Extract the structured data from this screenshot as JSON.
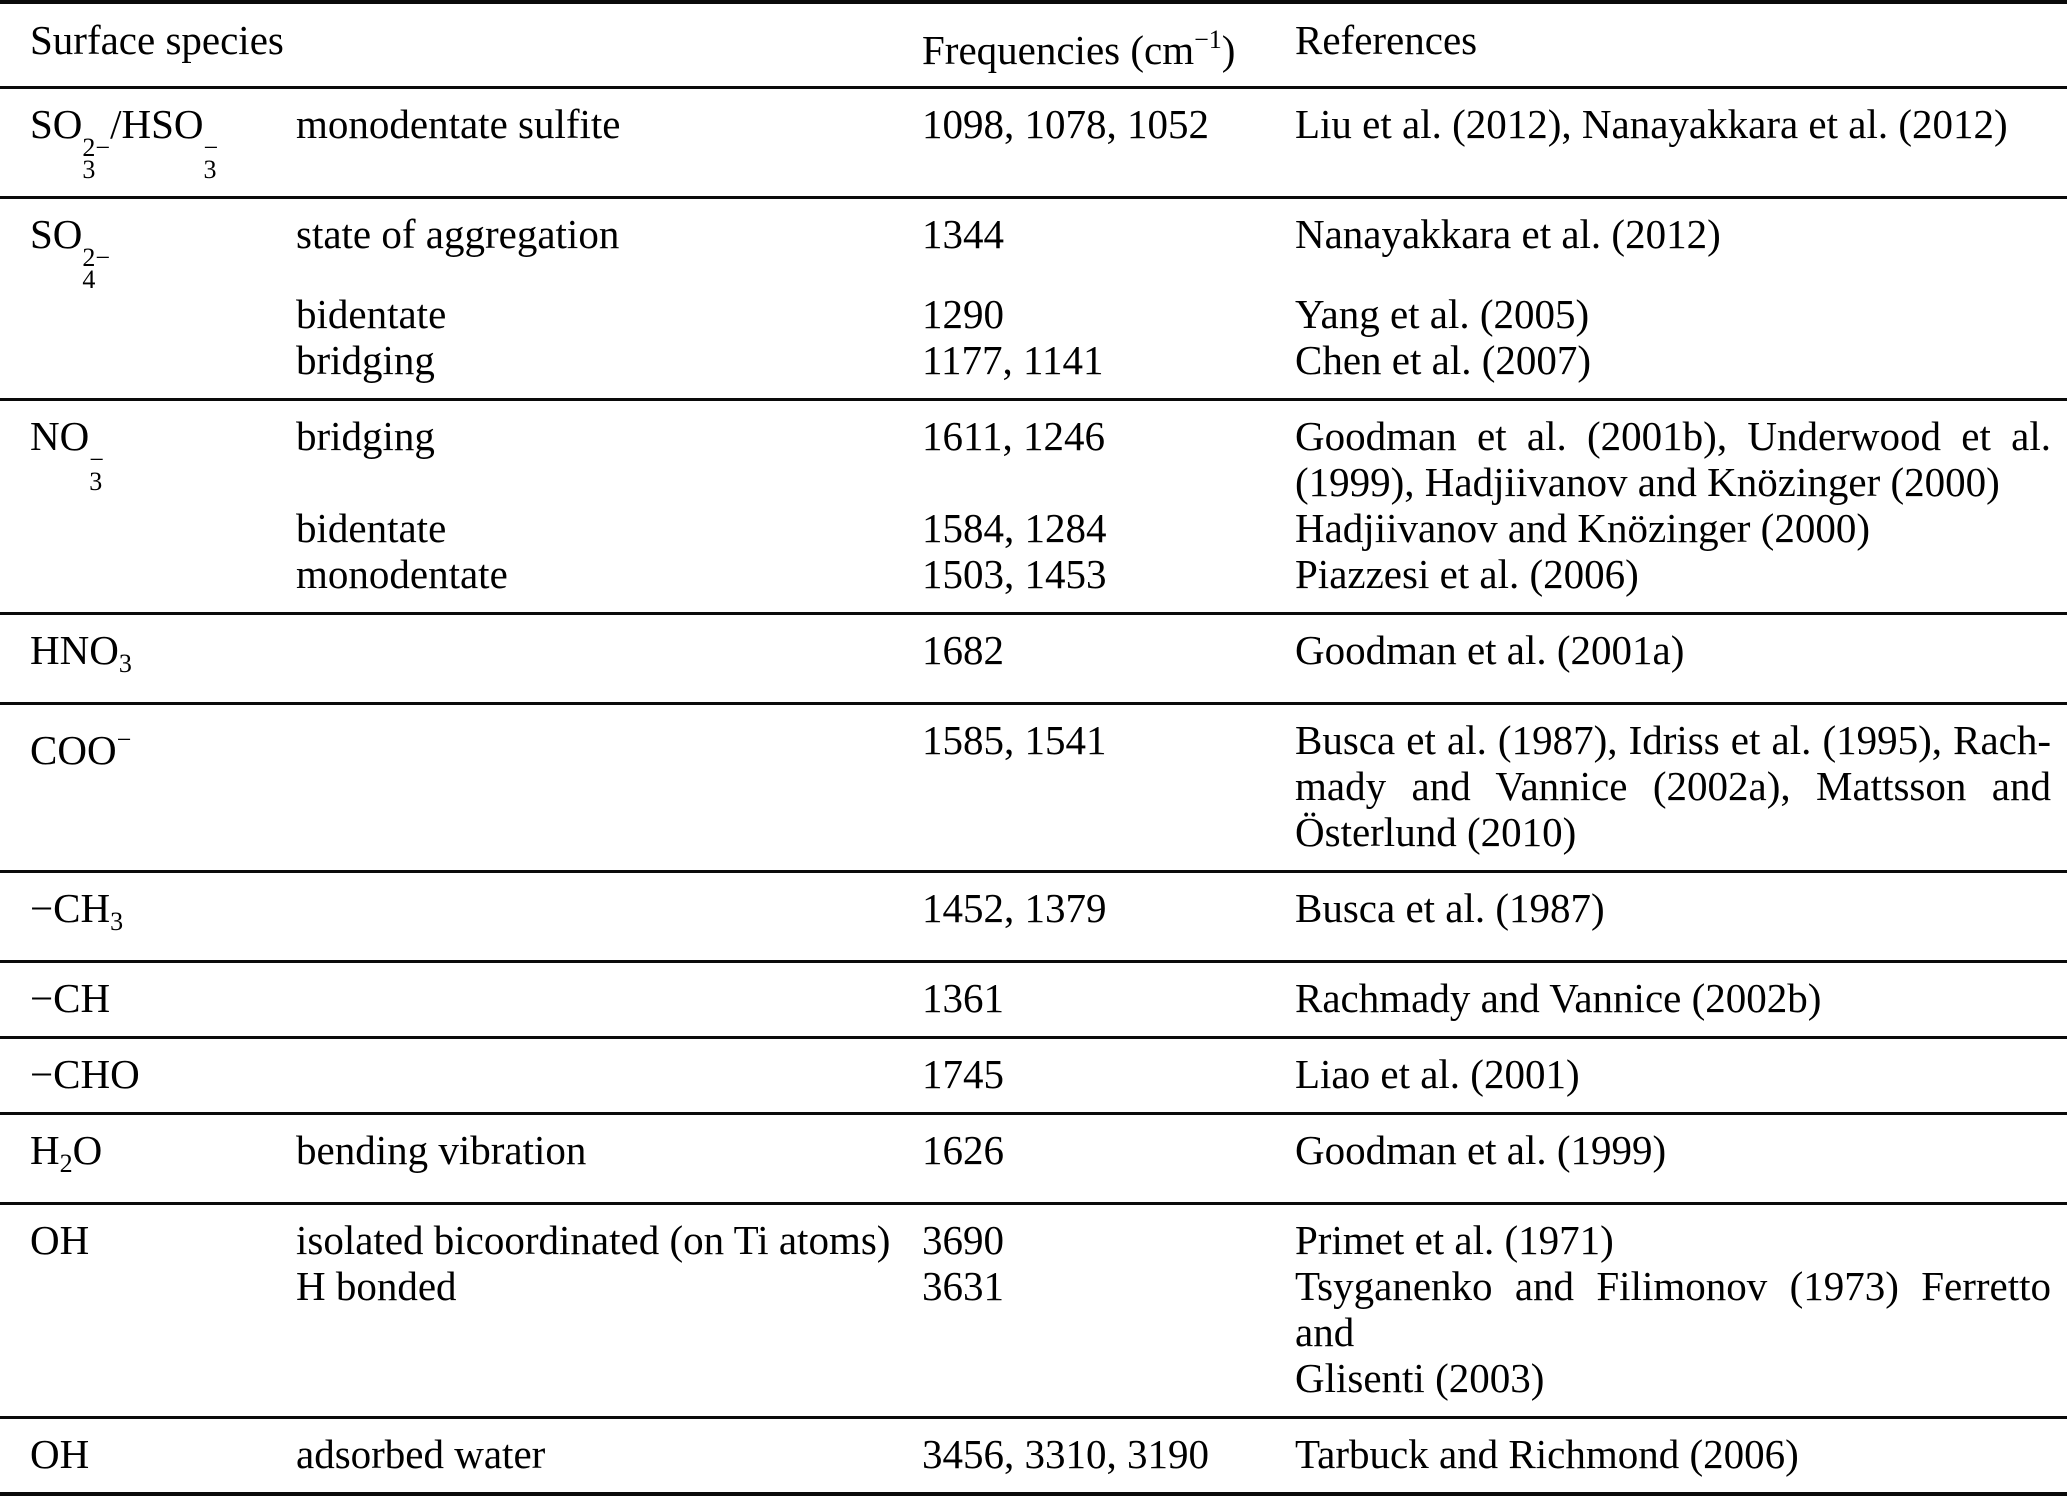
{
  "table": {
    "header": {
      "species_label": "Surface species",
      "frequencies_label": [
        {
          "text": "Frequencies (cm"
        },
        {
          "sup": "−1"
        },
        {
          "text": ")"
        }
      ],
      "references_label": "References"
    },
    "sections": [
      {
        "rows": [
          {
            "species": [
              {
                "text": "SO"
              },
              {
                "sup": "2−",
                "sub": "3"
              },
              {
                "text": "/HSO"
              },
              {
                "sup": "−",
                "sub": "3"
              }
            ],
            "description": "monodentate sulfite",
            "frequencies": "1098, 1078, 1052",
            "references": [
              "Liu et al. (2012), Nanayakkara et al. (2012)"
            ]
          }
        ]
      },
      {
        "rows": [
          {
            "species": [
              {
                "text": "SO"
              },
              {
                "sup": "2−",
                "sub": "4"
              }
            ],
            "description": "state of aggregation",
            "frequencies": "1344",
            "references": [
              "Nanayakkara et al. (2012)"
            ]
          },
          {
            "species": [],
            "description": "bidentate",
            "frequencies": "1290",
            "references": [
              "Yang et al. (2005)"
            ]
          },
          {
            "species": [],
            "description": "bridging",
            "frequencies": "1177, 1141",
            "references": [
              "Chen et al. (2007)"
            ]
          }
        ]
      },
      {
        "rows": [
          {
            "species": [
              {
                "text": "NO"
              },
              {
                "sup": "−",
                "sub": "3"
              }
            ],
            "description": "bridging",
            "frequencies": "1611, 1246",
            "references": [
              "Goodman et al. (2001b), Underwood et al.",
              "(1999), Hadjiivanov and Knözinger (2000)"
            ]
          },
          {
            "species": [],
            "description": "bidentate",
            "frequencies": "1584, 1284",
            "references": [
              "Hadjiivanov and Knözinger (2000)"
            ]
          },
          {
            "species": [],
            "description": "monodentate",
            "frequencies": "1503, 1453",
            "references": [
              "Piazzesi et al. (2006)"
            ]
          }
        ]
      },
      {
        "rows": [
          {
            "species": [
              {
                "text": "HNO"
              },
              {
                "sub": "3"
              }
            ],
            "description": "",
            "frequencies": "1682",
            "references": [
              "Goodman et al. (2001a)"
            ]
          }
        ]
      },
      {
        "rows": [
          {
            "species": [
              {
                "text": "COO"
              },
              {
                "sup": "−"
              }
            ],
            "description": "",
            "frequencies": "1585, 1541",
            "references": [
              "Busca et al. (1987), Idriss et al. (1995), Rach-",
              "mady and Vannice (2002a), Mattsson and",
              "Österlund (2010)"
            ]
          }
        ]
      },
      {
        "rows": [
          {
            "species": [
              {
                "text": "−CH"
              },
              {
                "sub": "3"
              }
            ],
            "description": "",
            "frequencies": "1452, 1379",
            "references": [
              "Busca et al. (1987)"
            ]
          }
        ]
      },
      {
        "rows": [
          {
            "species": [
              {
                "text": "−CH"
              }
            ],
            "description": "",
            "frequencies": "1361",
            "references": [
              "Rachmady and Vannice (2002b)"
            ]
          }
        ]
      },
      {
        "rows": [
          {
            "species": [
              {
                "text": "−CHO"
              }
            ],
            "description": "",
            "frequencies": "1745",
            "references": [
              "Liao et al. (2001)"
            ]
          }
        ]
      },
      {
        "rows": [
          {
            "species": [
              {
                "text": "H"
              },
              {
                "sub": "2"
              },
              {
                "text": "O"
              }
            ],
            "description": "bending vibration",
            "frequencies": "1626",
            "references": [
              "Goodman et al. (1999)"
            ]
          }
        ]
      },
      {
        "rows": [
          {
            "species": [
              {
                "text": "OH"
              }
            ],
            "description": "isolated bicoordinated (on Ti atoms)",
            "frequencies": "3690",
            "references": [
              "Primet et al. (1971)"
            ]
          },
          {
            "species": [],
            "description": "H bonded",
            "frequencies": "3631",
            "references": [
              "Tsyganenko and Filimonov (1973) Ferretto and",
              "Glisenti (2003)"
            ]
          }
        ]
      },
      {
        "rows": [
          {
            "species": [
              {
                "text": "OH"
              }
            ],
            "description": "adsorbed water",
            "frequencies": "3456, 3310, 3190",
            "references": [
              "Tarbuck and Richmond (2006)"
            ]
          }
        ]
      }
    ]
  }
}
